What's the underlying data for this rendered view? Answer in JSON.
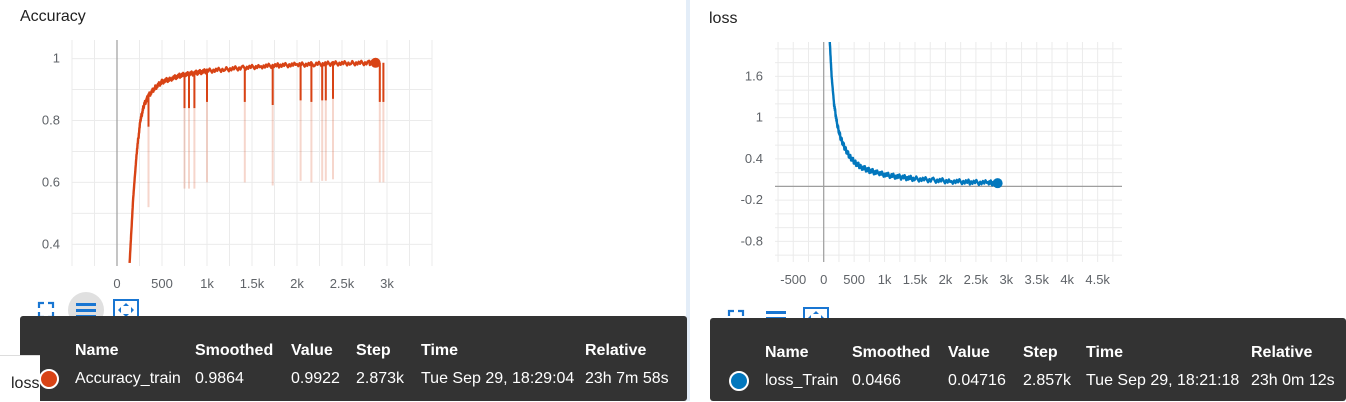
{
  "colors": {
    "accuracy": "#d84315",
    "loss": "#0277bd",
    "tooltip_bg": "#333333",
    "grid": "#e0e0e0"
  },
  "toolbar_icons": [
    "fullscreen-icon",
    "list-icon",
    "fit-domain-icon"
  ],
  "tooltip_columns": [
    "Name",
    "Smoothed",
    "Value",
    "Step",
    "Time",
    "Relative"
  ],
  "bottom_label": "loss",
  "accuracy_panel": {
    "title": "Accuracy",
    "tooltip_row": {
      "name": "Accuracy_train",
      "smoothed": "0.9864",
      "value": "0.9922",
      "step": "2.873k",
      "time": "Tue Sep 29, 18:29:04",
      "relative": "23h 7m 58s"
    }
  },
  "loss_panel": {
    "title": "loss",
    "tooltip_row": {
      "name": "loss_Train",
      "smoothed": "0.0466",
      "value": "0.04716",
      "step": "2.857k",
      "time": "Tue Sep 29, 18:21:18",
      "relative": "23h 0m 12s"
    }
  },
  "chart_data": [
    {
      "type": "line",
      "title": "Accuracy",
      "xlim": [
        -500,
        3500
      ],
      "ylim": [
        0.33,
        1.06
      ],
      "x_ticks": [
        0,
        500,
        1000,
        1500,
        2000,
        2500,
        3000
      ],
      "x_tick_labels": [
        "0",
        "500",
        "1k",
        "1.5k",
        "2k",
        "2.5k",
        "3k"
      ],
      "y_ticks": [
        0.4,
        0.6,
        0.8,
        1.0
      ],
      "y_tick_labels": [
        "0.4",
        "0.6",
        "0.8",
        "1"
      ],
      "grid": true,
      "series": [
        {
          "name": "Accuracy_train",
          "x": [
            140,
            180,
            220,
            260,
            300,
            350,
            420,
            500,
            600,
            700,
            800,
            900,
            1000,
            1200,
            1400,
            1600,
            1800,
            2000,
            2200,
            2400,
            2600,
            2800,
            2873
          ],
          "y": [
            0.34,
            0.55,
            0.7,
            0.8,
            0.85,
            0.88,
            0.905,
            0.925,
            0.935,
            0.945,
            0.95,
            0.955,
            0.96,
            0.965,
            0.97,
            0.975,
            0.978,
            0.98,
            0.982,
            0.984,
            0.985,
            0.986,
            0.9864
          ],
          "dips_x": [
            350,
            750,
            800,
            860,
            1000,
            1420,
            1730,
            2040,
            2160,
            2280,
            2320,
            2400,
            2920,
            2960
          ],
          "dips_y": [
            0.78,
            0.84,
            0.84,
            0.84,
            0.86,
            0.86,
            0.85,
            0.865,
            0.86,
            0.865,
            0.865,
            0.87,
            0.86,
            0.86
          ]
        }
      ]
    },
    {
      "type": "line",
      "title": "loss",
      "xlim": [
        -800,
        4900
      ],
      "ylim": [
        -1.1,
        2.1
      ],
      "x_ticks": [
        -500,
        0,
        500,
        1000,
        1500,
        2000,
        2500,
        3000,
        3500,
        4000,
        4500
      ],
      "x_tick_labels": [
        "-500",
        "0",
        "500",
        "1k",
        "1.5k",
        "2k",
        "2.5k",
        "3k",
        "3.5k",
        "4k",
        "4.5k"
      ],
      "y_ticks": [
        -0.8,
        -0.2,
        0.4,
        1.0,
        1.6
      ],
      "y_tick_labels": [
        "-0.8",
        "-0.2",
        "0.4",
        "1",
        "1.6"
      ],
      "grid": true,
      "series": [
        {
          "name": "loss_Train",
          "x": [
            100,
            130,
            170,
            220,
            280,
            350,
            430,
            520,
            620,
            750,
            900,
            1100,
            1300,
            1500,
            1800,
            2100,
            2400,
            2700,
            2857
          ],
          "y": [
            2.1,
            1.6,
            1.2,
            0.9,
            0.7,
            0.55,
            0.43,
            0.34,
            0.28,
            0.23,
            0.19,
            0.155,
            0.13,
            0.11,
            0.09,
            0.075,
            0.062,
            0.052,
            0.0466
          ]
        }
      ]
    }
  ]
}
